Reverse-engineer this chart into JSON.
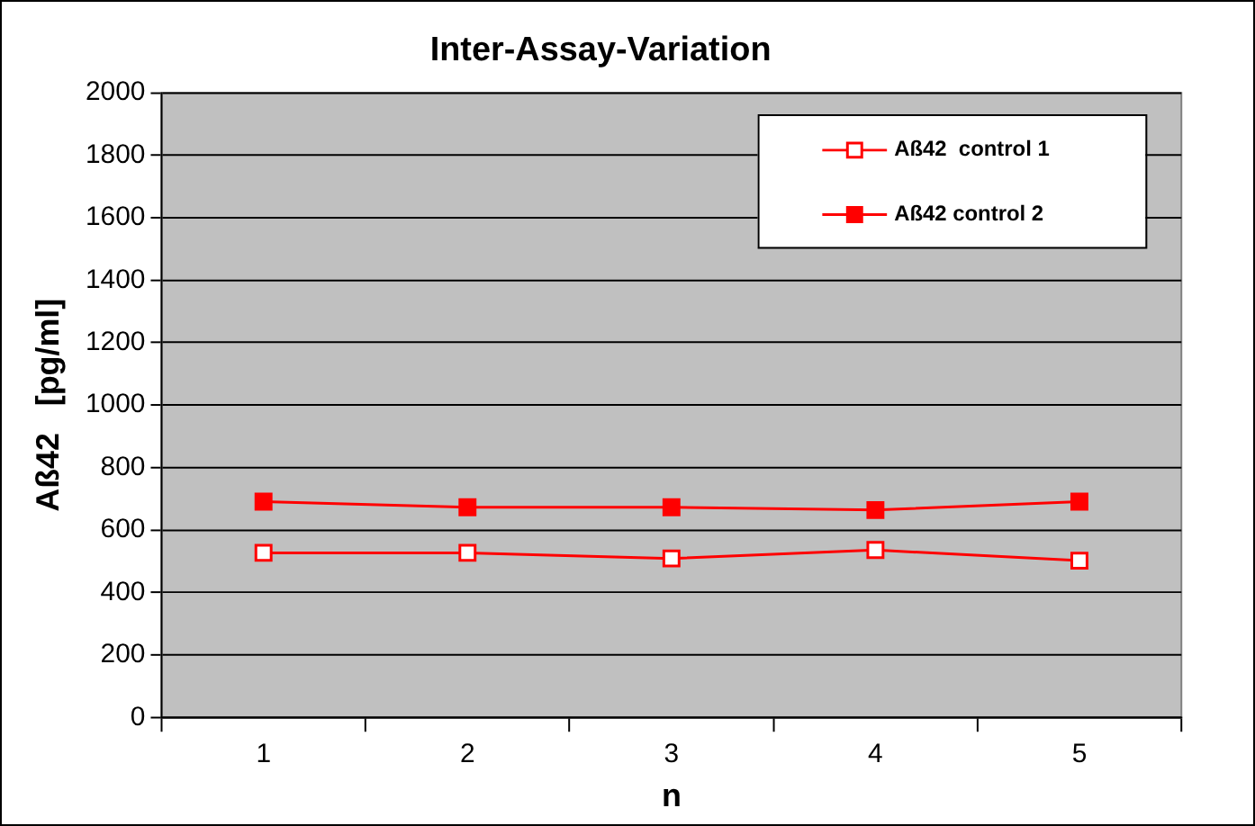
{
  "chart_data": {
    "type": "line",
    "title": "Inter-Assay-Variation",
    "xlabel": "n",
    "ylabel": "Aß42   [pg/ml]",
    "categories": [
      "1",
      "2",
      "3",
      "4",
      "5"
    ],
    "series": [
      {
        "name": "Aß42  control 1",
        "color": "#ff0000",
        "values": [
          527,
          527,
          509,
          536,
          502
        ]
      },
      {
        "name": "Aß42 control 2",
        "color": "#ff0000",
        "values": [
          691,
          673,
          673,
          664,
          691
        ]
      }
    ],
    "ylim": [
      0,
      2000
    ],
    "yticks": [
      0,
      200,
      400,
      600,
      800,
      1000,
      1200,
      1400,
      1600,
      1800,
      2000
    ],
    "grid": "y",
    "legend": "top right",
    "marker": "square",
    "line_style": "solid"
  }
}
